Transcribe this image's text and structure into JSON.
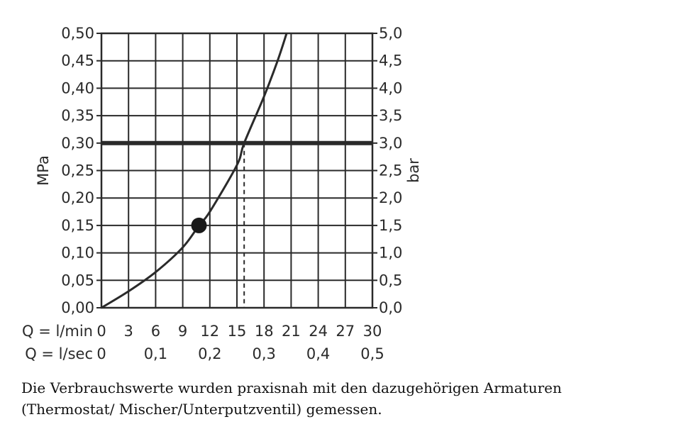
{
  "chart_data": {
    "type": "line",
    "y_left_label": "MPa",
    "y_right_label": "bar",
    "y_left_ticks": [
      "0,00",
      "0,05",
      "0,10",
      "0,15",
      "0,20",
      "0,25",
      "0,30",
      "0,35",
      "0,40",
      "0,45",
      "0,50"
    ],
    "y_right_ticks": [
      "0,0",
      "0,5",
      "1,0",
      "1,5",
      "2,0",
      "2,5",
      "3,0",
      "3,5",
      "4,0",
      "4,5",
      "5,0"
    ],
    "ylim_mpa": [
      0,
      0.5
    ],
    "ylim_bar": [
      0,
      5
    ],
    "x_primary_label": "Q = l/min",
    "x_primary_ticks": [
      "0",
      "3",
      "6",
      "9",
      "12",
      "15",
      "18",
      "21",
      "24",
      "27",
      "30"
    ],
    "x_secondary_label": "Q = l/sec",
    "x_secondary_ticks": [
      "0",
      "0,1",
      "0,2",
      "0,3",
      "0,4",
      "0,5"
    ],
    "xlim_lmin": [
      0,
      30
    ],
    "grid": true,
    "series": [
      {
        "x": [
          0,
          3,
          6,
          9,
          10.8,
          12,
          15,
          15.8,
          18,
          19.5,
          20.5
        ],
        "y": [
          0,
          0.03,
          0.065,
          0.11,
          0.15,
          0.175,
          0.26,
          0.3,
          0.385,
          0.45,
          0.5
        ]
      }
    ],
    "reference_line_mpa": 0.3,
    "operating_point": {
      "x": 10.8,
      "y": 0.15
    },
    "marked_flow_lmin": 15.8
  },
  "caption": "Die Verbrauchswerte wurden praxisnah mit den dazugehörigen Armaturen (Thermostat/ Mischer/Unterputzventil) gemessen."
}
